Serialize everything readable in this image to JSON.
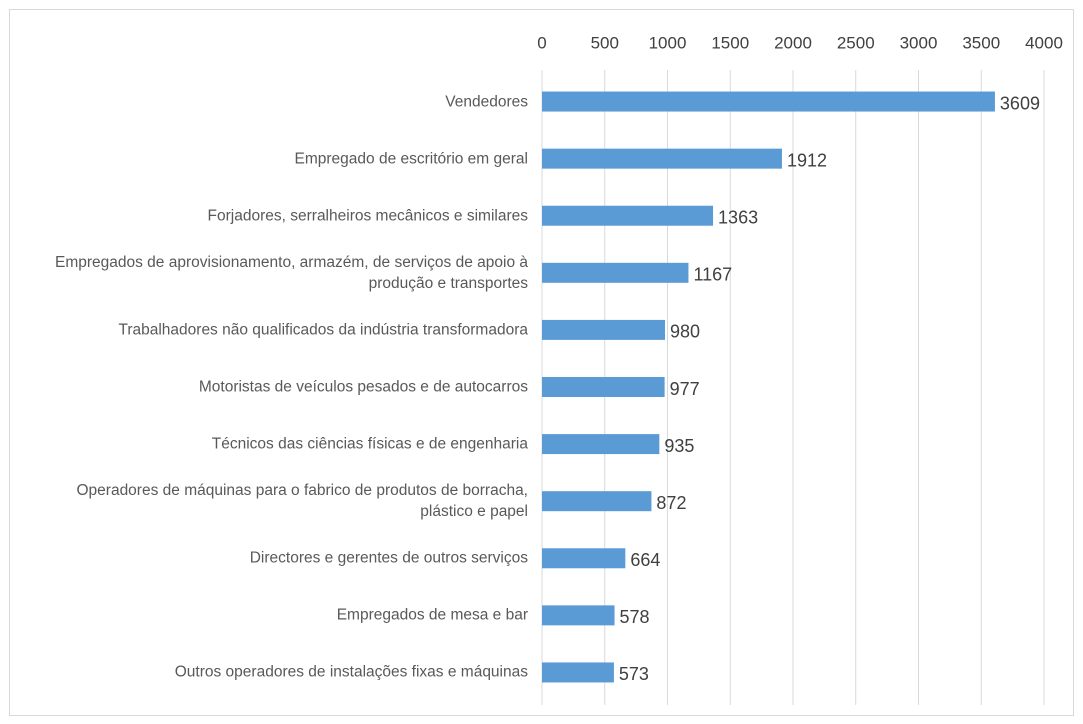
{
  "chart_data": {
    "type": "bar",
    "orientation": "horizontal",
    "categories": [
      "Vendedores",
      "Empregado de escritório em geral",
      "Forjadores, serralheiros mecânicos e similares",
      "Empregados de aprovisionamento, armazém, de serviços de apoio à produção e transportes",
      "Trabalhadores não qualificados da indústria transformadora",
      "Motoristas de veículos pesados e de autocarros",
      "Técnicos das ciências físicas e de engenharia",
      "Operadores de máquinas para o fabrico de produtos de borracha, plástico e papel",
      "Directores e gerentes de outros serviços",
      "Empregados de mesa e bar",
      "Outros operadores de instalações fixas e máquinas"
    ],
    "values": [
      3609,
      1912,
      1363,
      1167,
      980,
      977,
      935,
      872,
      664,
      578,
      573
    ],
    "color": "#5b9bd5",
    "xlim": [
      0,
      4000
    ],
    "xticks": [
      0,
      500,
      1000,
      1500,
      2000,
      2500,
      3000,
      3500,
      4000
    ],
    "grid": true
  }
}
